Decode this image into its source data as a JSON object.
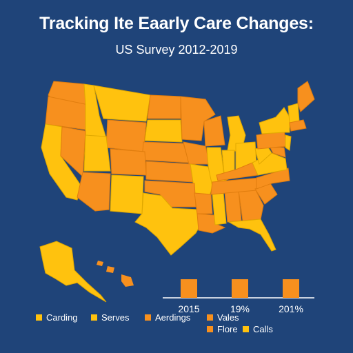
{
  "title": "Tracking Ite Eaarly Care Changes:",
  "subtitle": "US Survey 2012-2019",
  "colors": {
    "background": "#1f4479",
    "yellow": "#ffc20e",
    "orange": "#f7901e",
    "ocean_line": "#ffffff"
  },
  "bars": [
    {
      "label": "2015",
      "value": 1
    },
    {
      "label": "19%",
      "value": 1
    },
    {
      "label": "201%",
      "value": 1
    }
  ],
  "legend": [
    {
      "label": "Carding",
      "color": "#ffc20e"
    },
    {
      "label": "Serves",
      "color": "#ffc20e"
    },
    {
      "label": "Aerdings",
      "color": "#f7901e"
    },
    {
      "label": "Vales",
      "color": "#f7901e"
    },
    {
      "label": "Flore",
      "color": "#f7901e"
    },
    {
      "label": "Calls",
      "color": "#ffc20e"
    }
  ]
}
